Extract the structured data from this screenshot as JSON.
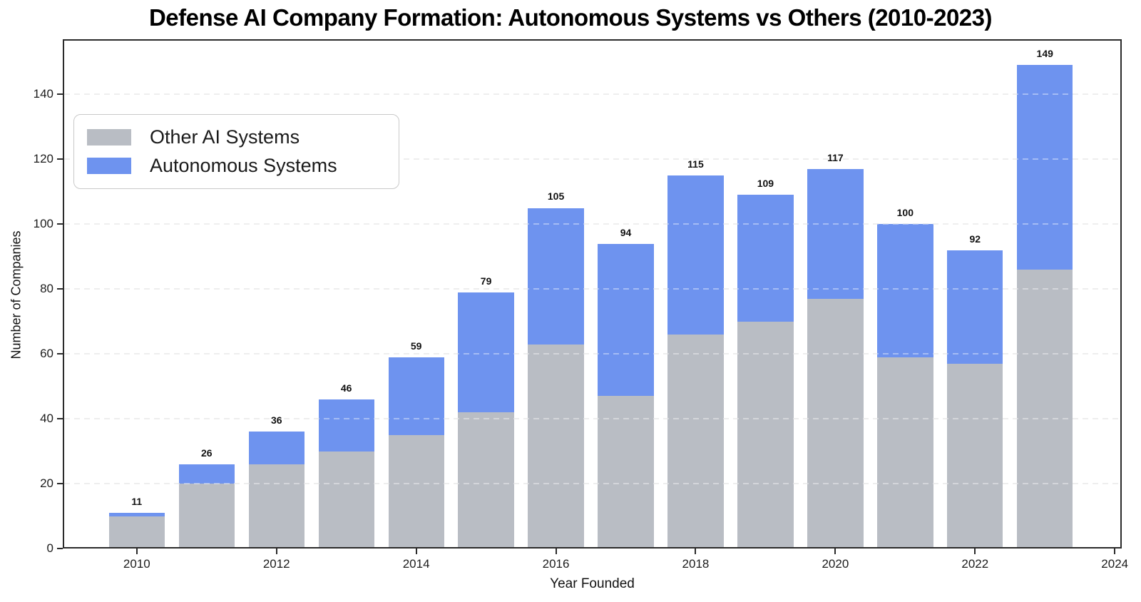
{
  "chart_data": {
    "type": "bar",
    "stacked": true,
    "title": "Defense AI Company Formation: Autonomous Systems vs Others (2010-2023)",
    "xlabel": "Year Founded",
    "ylabel": "Number of Companies",
    "categories": [
      2010,
      2011,
      2012,
      2013,
      2014,
      2015,
      2016,
      2017,
      2018,
      2019,
      2020,
      2021,
      2022,
      2023
    ],
    "series": [
      {
        "name": "Other AI Systems",
        "color": "#b9bdc4",
        "values": [
          10,
          20,
          26,
          30,
          35,
          42,
          63,
          47,
          66,
          70,
          77,
          59,
          57,
          86
        ]
      },
      {
        "name": "Autonomous Systems",
        "color": "#6e93ef",
        "values": [
          1,
          6,
          10,
          16,
          24,
          37,
          42,
          47,
          49,
          39,
          40,
          41,
          35,
          63
        ]
      }
    ],
    "totals": [
      11,
      26,
      36,
      46,
      59,
      79,
      105,
      94,
      115,
      109,
      117,
      100,
      92,
      149
    ],
    "yticks": [
      0,
      20,
      40,
      60,
      80,
      100,
      120,
      140
    ],
    "xticks": [
      2010,
      2012,
      2014,
      2016,
      2018,
      2020,
      2022,
      2024
    ],
    "ylim": [
      0,
      157
    ],
    "xlim": [
      2008.94,
      2024.1
    ],
    "bar_width_years": 0.8,
    "grid": "horizontal-dashed",
    "legend_position": "upper-left",
    "colors": {
      "axis": "#2b2b2b",
      "grid": "#e4e4e4",
      "title_text": "#000000",
      "tick_text": "#1c1c1c",
      "value_label_text": "#111111"
    }
  }
}
